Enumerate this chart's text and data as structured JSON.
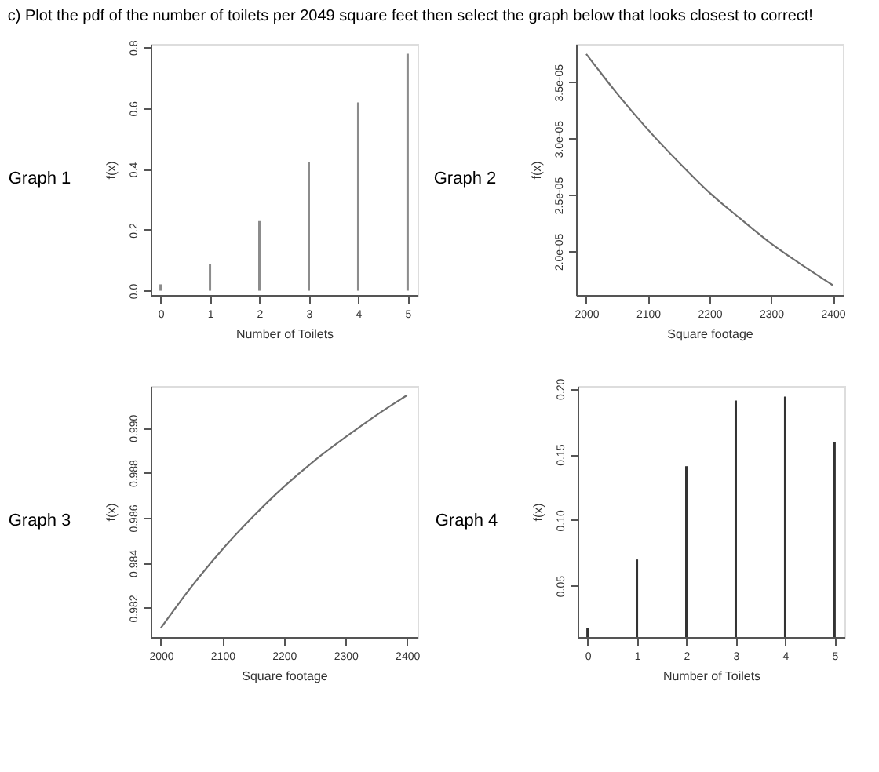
{
  "chart_data": [
    {
      "type": "bar",
      "title": "Graph 1",
      "annotations": [
        "c) Plot the pdf of the number of toilets per 2049 square feet then select the graph below that looks closest to correct!"
      ],
      "xlabel": "Number of Toilets",
      "ylabel": "f(x)",
      "x": [
        0,
        1,
        2,
        3,
        4,
        5
      ],
      "series": [
        {
          "color": "#8c8c8c",
          "values": [
            0.021,
            0.087,
            0.229,
            0.423,
            0.619,
            0.779
          ]
        }
      ],
      "xlim": [
        -0.2,
        5.2
      ],
      "xticks": [
        0,
        1,
        2,
        3,
        4,
        5
      ],
      "ylim": [
        -0.014,
        0.811
      ],
      "yticks": [
        {
          "value": 0,
          "label": "0.0"
        },
        0.2,
        0.4,
        0.6,
        0.8
      ],
      "grid": false
    },
    {
      "type": "line",
      "title": "Graph 2",
      "xlabel": "Square footage",
      "ylabel": "f(x)",
      "x": [
        2000,
        2050,
        2100,
        2150,
        2200,
        2250,
        2300,
        2350,
        2400
      ],
      "series": [
        {
          "color": "#6e6e6e",
          "values": [
            3.75e-05,
            3.4e-05,
            3.08e-05,
            2.79e-05,
            2.52e-05,
            2.29e-05,
            2.07e-05,
            1.88e-05,
            1.7e-05
          ]
        }
      ],
      "xlim": [
        1983.5,
        2416.5
      ],
      "xticks": [
        2000,
        2100,
        2200,
        2300,
        2400
      ],
      "ylim": [
        1.613e-05,
        3.839e-05
      ],
      "yticks": [
        {
          "value": 2e-05,
          "label": "2.0e-05"
        },
        {
          "value": 2.5e-05,
          "label": "2.5e-05"
        },
        {
          "value": 3e-05,
          "label": "3.0e-05"
        },
        {
          "value": 3.5e-05,
          "label": "3.5e-05"
        }
      ],
      "grid": false
    },
    {
      "type": "line",
      "title": "Graph 3",
      "xlabel": "Square footage",
      "ylabel": "f(x)",
      "x": [
        2000,
        2050,
        2100,
        2150,
        2200,
        2250,
        2300,
        2350,
        2400
      ],
      "series": [
        {
          "color": "#6e6e6e",
          "values": [
            0.98111,
            0.98295,
            0.9846,
            0.98606,
            0.98738,
            0.98855,
            0.98958,
            0.99055,
            0.99144
          ]
        }
      ],
      "xlim": [
        1983.5,
        2417
      ],
      "xticks": [
        2000,
        2100,
        2200,
        2300,
        2400
      ],
      "ylim": [
        0.98071,
        0.99185
      ],
      "yticks": [
        0.982,
        0.984,
        0.986,
        0.988,
        {
          "value": 0.99,
          "label": "0.990"
        }
      ],
      "grid": false
    },
    {
      "type": "bar",
      "title": "Graph 4",
      "xlabel": "Number of Toilets",
      "ylabel": "f(x)",
      "x": [
        0,
        1,
        2,
        3,
        4,
        5
      ],
      "series": [
        {
          "color": "#333333",
          "values": [
            0.018,
            0.07,
            0.141,
            0.191,
            0.194,
            0.159
          ]
        }
      ],
      "xlim": [
        -0.2,
        5.2
      ],
      "xticks": [
        0,
        1,
        2,
        3,
        4,
        5
      ],
      "ylim": [
        0.011,
        0.202
      ],
      "yticks": [
        0.05,
        {
          "value": 0.1,
          "label": "0.10"
        },
        0.15,
        {
          "value": 0.2,
          "label": "0.20"
        }
      ],
      "grid": false
    }
  ]
}
